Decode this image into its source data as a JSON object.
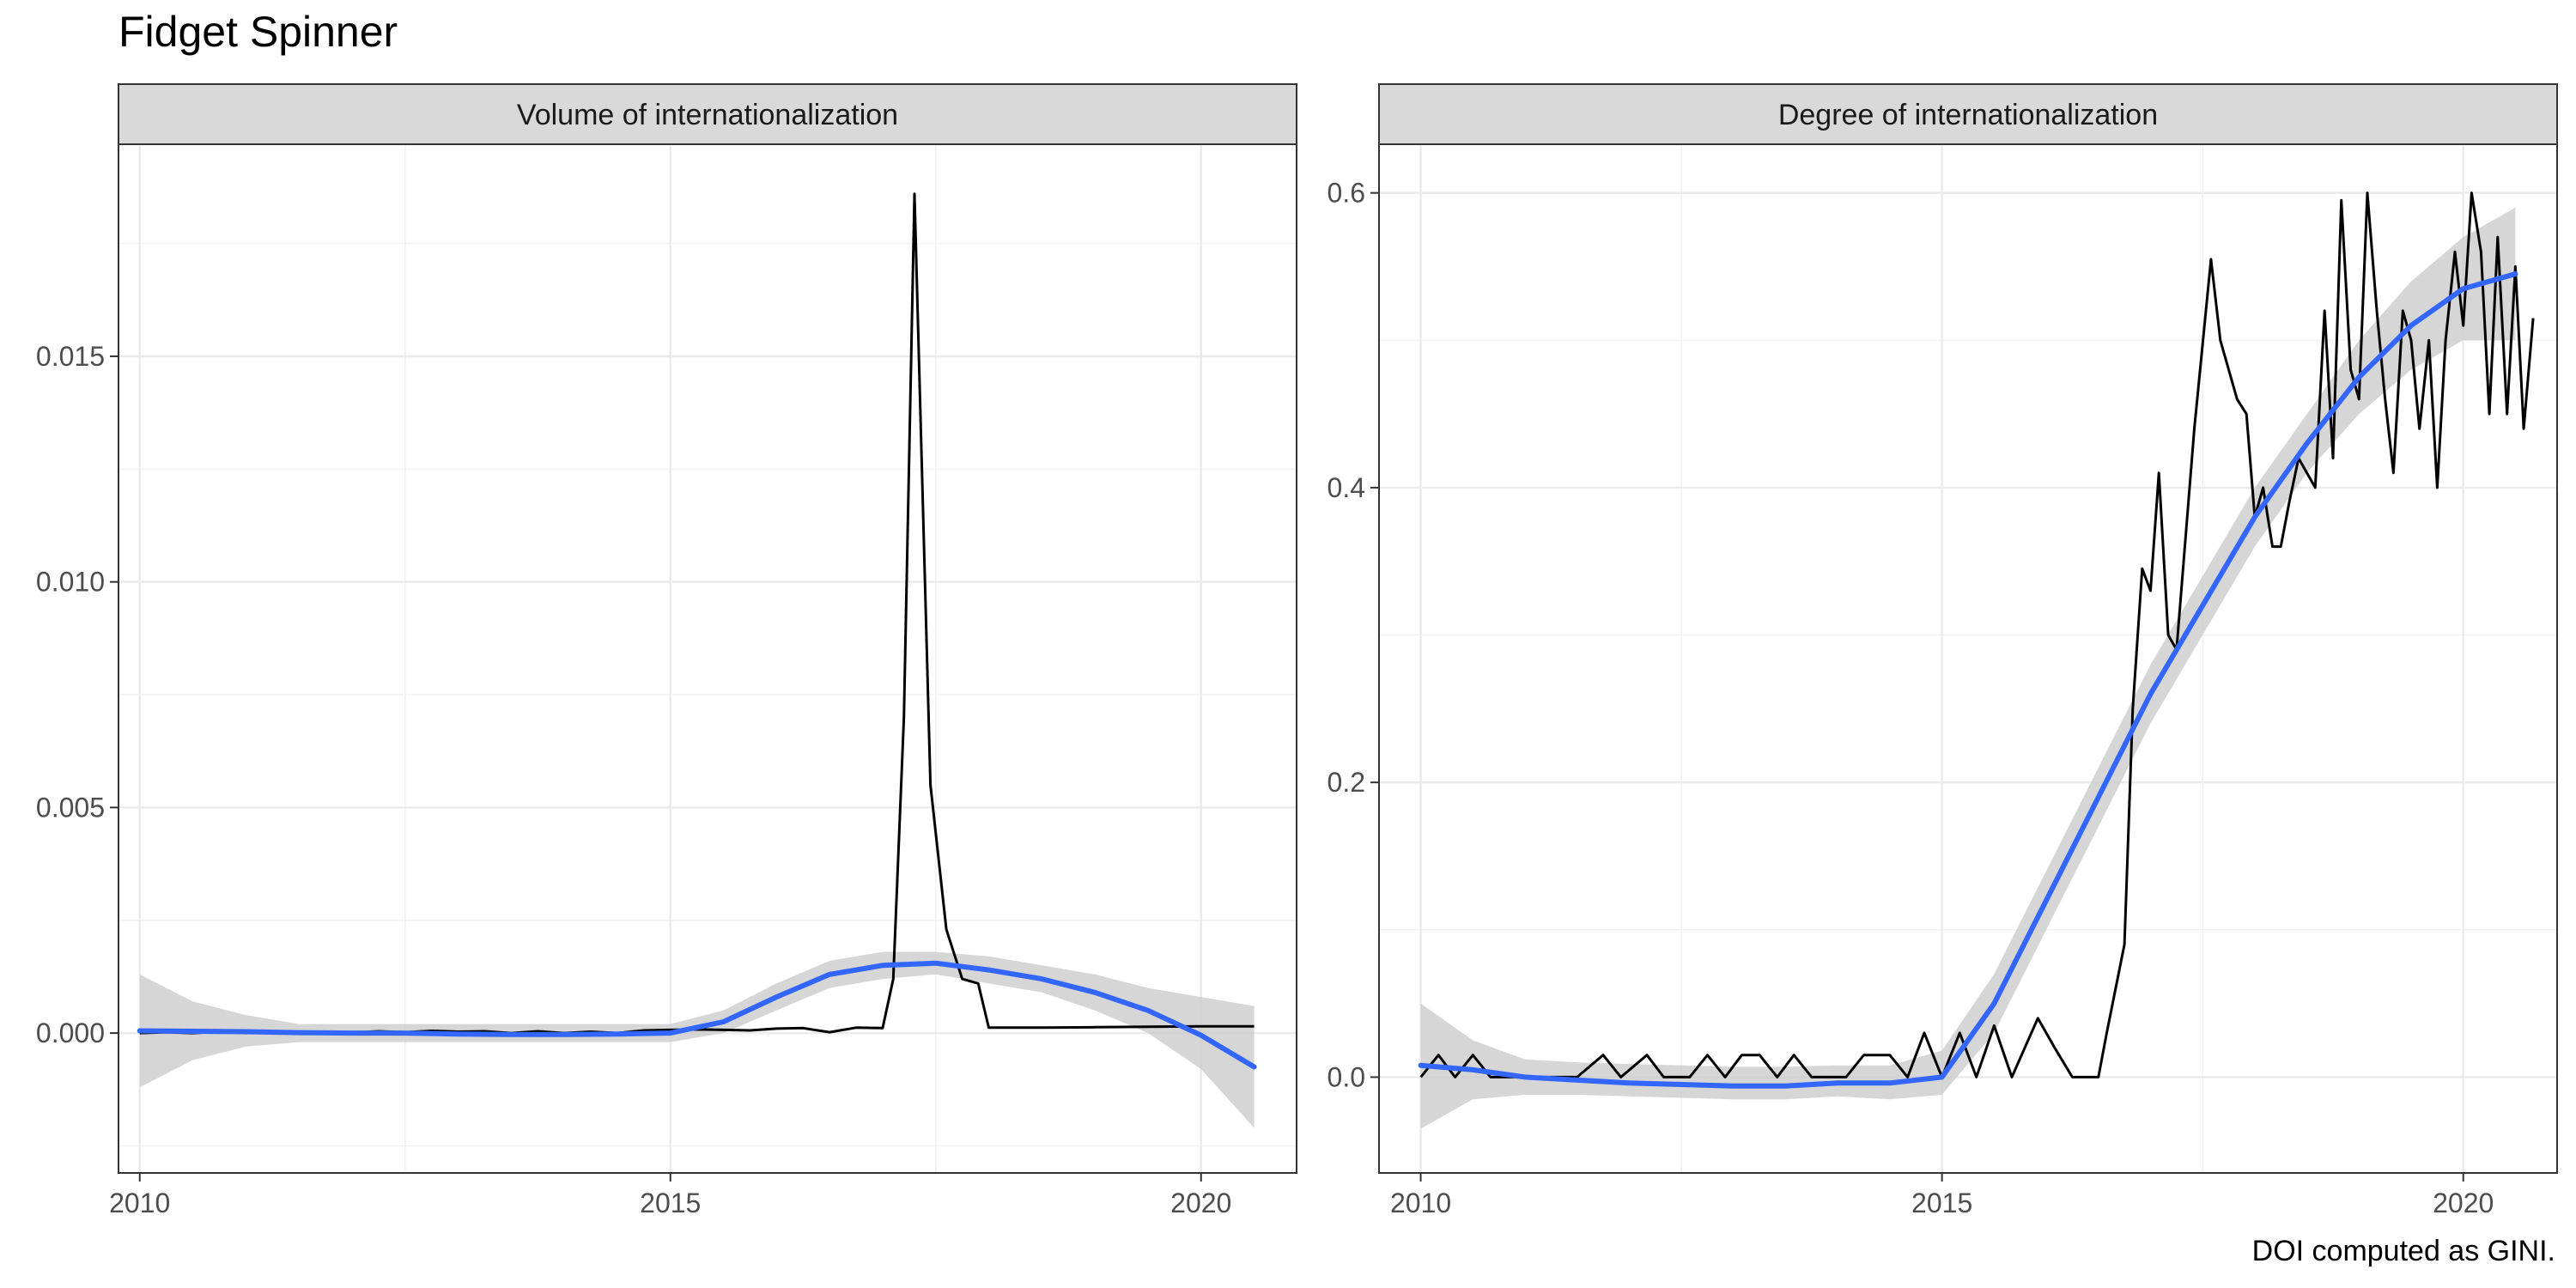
{
  "title": "Fidget Spinner",
  "caption": "DOI computed as GINI.",
  "chart_data": [
    {
      "type": "line",
      "title": "Volume of internationalization",
      "xlabel": "",
      "ylabel": "",
      "xlim": [
        2009.8,
        2020.9
      ],
      "ylim": [
        -0.0031,
        0.0197
      ],
      "x_ticks": [
        2010,
        2015,
        2020
      ],
      "x_tick_labels": [
        "2010",
        "2015",
        "2020"
      ],
      "y_ticks": [
        0.0,
        0.005,
        0.01,
        0.015
      ],
      "y_tick_labels": [
        "0.000",
        "0.005",
        "0.010",
        "0.015"
      ],
      "grid": true,
      "series": [
        {
          "role": "observed",
          "color": "#000000",
          "points": [
            [
              2010.0,
              0.0
            ],
            [
              2010.25,
              2e-05
            ],
            [
              2010.5,
              0.0
            ],
            [
              2010.75,
              3e-05
            ],
            [
              2011.0,
              0.0
            ],
            [
              2011.25,
              4e-05
            ],
            [
              2011.5,
              0.0
            ],
            [
              2011.75,
              3e-05
            ],
            [
              2012.0,
              1e-05
            ],
            [
              2012.25,
              4e-05
            ],
            [
              2012.5,
              2e-05
            ],
            [
              2012.75,
              5e-05
            ],
            [
              2013.0,
              3e-05
            ],
            [
              2013.25,
              4e-05
            ],
            [
              2013.5,
              0.0
            ],
            [
              2013.75,
              4e-05
            ],
            [
              2014.0,
              0.0
            ],
            [
              2014.25,
              3e-05
            ],
            [
              2014.5,
              0.0
            ],
            [
              2014.75,
              6e-05
            ],
            [
              2015.0,
              7e-05
            ],
            [
              2015.25,
              8e-05
            ],
            [
              2015.5,
              7e-05
            ],
            [
              2015.75,
              6e-05
            ],
            [
              2016.0,
              0.0001
            ],
            [
              2016.25,
              0.00011
            ],
            [
              2016.5,
              2e-05
            ],
            [
              2016.75,
              0.00012
            ],
            [
              2017.0,
              0.00011
            ],
            [
              2017.1,
              0.0012
            ],
            [
              2017.2,
              0.007
            ],
            [
              2017.3,
              0.0186
            ],
            [
              2017.45,
              0.0055
            ],
            [
              2017.6,
              0.0023
            ],
            [
              2017.75,
              0.0012
            ],
            [
              2017.9,
              0.0011
            ],
            [
              2018.0,
              0.00012
            ],
            [
              2018.5,
              0.00012
            ],
            [
              2019.0,
              0.00013
            ],
            [
              2019.5,
              0.00014
            ],
            [
              2020.0,
              0.00015
            ],
            [
              2020.5,
              0.00015
            ]
          ]
        },
        {
          "role": "smooth",
          "color": "#3366FF",
          "points": [
            [
              2010.0,
              5e-05
            ],
            [
              2010.5,
              4e-05
            ],
            [
              2011.0,
              3e-05
            ],
            [
              2011.5,
              1e-05
            ],
            [
              2012.0,
              0.0
            ],
            [
              2012.5,
              0.0
            ],
            [
              2013.0,
              -2e-05
            ],
            [
              2013.5,
              -3e-05
            ],
            [
              2014.0,
              -3e-05
            ],
            [
              2014.5,
              -2e-05
            ],
            [
              2015.0,
              0.0
            ],
            [
              2015.5,
              0.00025
            ],
            [
              2016.0,
              0.0008
            ],
            [
              2016.5,
              0.0013
            ],
            [
              2017.0,
              0.0015
            ],
            [
              2017.5,
              0.00155
            ],
            [
              2018.0,
              0.0014
            ],
            [
              2018.5,
              0.0012
            ],
            [
              2019.0,
              0.0009
            ],
            [
              2019.5,
              0.0005
            ],
            [
              2020.0,
              -5e-05
            ],
            [
              2020.5,
              -0.00075
            ]
          ]
        }
      ],
      "ribbon": [
        [
          2010.0,
          -0.0012,
          0.0013
        ],
        [
          2010.5,
          -0.0006,
          0.0007
        ],
        [
          2011.0,
          -0.0003,
          0.0004
        ],
        [
          2011.5,
          -0.0002,
          0.0002
        ],
        [
          2012.0,
          -0.0002,
          0.0002
        ],
        [
          2012.5,
          -0.0002,
          0.0002
        ],
        [
          2013.0,
          -0.0002,
          0.0002
        ],
        [
          2013.5,
          -0.0002,
          0.0002
        ],
        [
          2014.0,
          -0.0002,
          0.0002
        ],
        [
          2014.5,
          -0.0002,
          0.0002
        ],
        [
          2015.0,
          -0.0002,
          0.0002
        ],
        [
          2015.5,
          0.0,
          0.0005
        ],
        [
          2016.0,
          0.0005,
          0.0011
        ],
        [
          2016.5,
          0.001,
          0.0016
        ],
        [
          2017.0,
          0.0012,
          0.0018
        ],
        [
          2017.5,
          0.0013,
          0.0018
        ],
        [
          2018.0,
          0.0011,
          0.0017
        ],
        [
          2018.5,
          0.0009,
          0.0015
        ],
        [
          2019.0,
          0.0005,
          0.0013
        ],
        [
          2019.5,
          0.0,
          0.001
        ],
        [
          2020.0,
          -0.0008,
          0.0008
        ],
        [
          2020.5,
          -0.0021,
          0.0006
        ]
      ]
    },
    {
      "type": "line",
      "title": "Degree of internationalization",
      "xlabel": "",
      "ylabel": "",
      "xlim": [
        2009.6,
        2020.9
      ],
      "ylim": [
        -0.065,
        0.633
      ],
      "x_ticks": [
        2010,
        2015,
        2020
      ],
      "x_tick_labels": [
        "2010",
        "2015",
        "2020"
      ],
      "y_ticks": [
        0.0,
        0.2,
        0.4,
        0.6
      ],
      "y_tick_labels": [
        "0.0",
        "0.2",
        "0.4",
        "0.6"
      ],
      "grid": true,
      "series": [
        {
          "role": "observed",
          "color": "#000000",
          "points": [
            [
              2010.0,
              0.0
            ],
            [
              2010.17,
              0.015
            ],
            [
              2010.33,
              0.0
            ],
            [
              2010.5,
              0.015
            ],
            [
              2010.67,
              0.0
            ],
            [
              2011.0,
              0.0
            ],
            [
              2011.5,
              0.0
            ],
            [
              2011.75,
              0.015
            ],
            [
              2011.92,
              0.0
            ],
            [
              2012.17,
              0.015
            ],
            [
              2012.33,
              0.0
            ],
            [
              2012.58,
              0.0
            ],
            [
              2012.75,
              0.015
            ],
            [
              2012.92,
              0.0
            ],
            [
              2013.08,
              0.015
            ],
            [
              2013.25,
              0.015
            ],
            [
              2013.42,
              0.0
            ],
            [
              2013.58,
              0.015
            ],
            [
              2013.75,
              0.0
            ],
            [
              2013.92,
              0.0
            ],
            [
              2014.08,
              0.0
            ],
            [
              2014.25,
              0.015
            ],
            [
              2014.5,
              0.015
            ],
            [
              2014.67,
              0.0
            ],
            [
              2014.83,
              0.03
            ],
            [
              2015.0,
              0.0
            ],
            [
              2015.17,
              0.03
            ],
            [
              2015.33,
              0.0
            ],
            [
              2015.5,
              0.035
            ],
            [
              2015.67,
              0.0
            ],
            [
              2015.92,
              0.04
            ],
            [
              2016.08,
              0.02
            ],
            [
              2016.25,
              0.0
            ],
            [
              2016.5,
              0.0
            ],
            [
              2016.58,
              0.03
            ],
            [
              2016.75,
              0.09
            ],
            [
              2016.83,
              0.25
            ],
            [
              2016.92,
              0.345
            ],
            [
              2017.0,
              0.33
            ],
            [
              2017.08,
              0.41
            ],
            [
              2017.17,
              0.3
            ],
            [
              2017.25,
              0.29
            ],
            [
              2017.42,
              0.44
            ],
            [
              2017.58,
              0.555
            ],
            [
              2017.67,
              0.5
            ],
            [
              2017.83,
              0.46
            ],
            [
              2017.92,
              0.45
            ],
            [
              2018.0,
              0.38
            ],
            [
              2018.08,
              0.4
            ],
            [
              2018.17,
              0.36
            ],
            [
              2018.25,
              0.36
            ],
            [
              2018.33,
              0.39
            ],
            [
              2018.42,
              0.42
            ],
            [
              2018.58,
              0.4
            ],
            [
              2018.67,
              0.52
            ],
            [
              2018.75,
              0.42
            ],
            [
              2018.83,
              0.595
            ],
            [
              2018.92,
              0.48
            ],
            [
              2019.0,
              0.46
            ],
            [
              2019.08,
              0.6
            ],
            [
              2019.17,
              0.52
            ],
            [
              2019.25,
              0.46
            ],
            [
              2019.33,
              0.41
            ],
            [
              2019.42,
              0.52
            ],
            [
              2019.5,
              0.5
            ],
            [
              2019.58,
              0.44
            ],
            [
              2019.67,
              0.5
            ],
            [
              2019.75,
              0.4
            ],
            [
              2019.83,
              0.5
            ],
            [
              2019.92,
              0.56
            ],
            [
              2020.0,
              0.51
            ],
            [
              2020.08,
              0.6
            ],
            [
              2020.17,
              0.56
            ],
            [
              2020.25,
              0.45
            ],
            [
              2020.33,
              0.57
            ],
            [
              2020.42,
              0.45
            ],
            [
              2020.5,
              0.55
            ],
            [
              2020.58,
              0.44
            ],
            [
              2020.67,
              0.515
            ]
          ]
        },
        {
          "role": "smooth",
          "color": "#3366FF",
          "points": [
            [
              2010.0,
              0.008
            ],
            [
              2010.5,
              0.005
            ],
            [
              2011.0,
              0.0
            ],
            [
              2011.5,
              -0.002
            ],
            [
              2012.0,
              -0.004
            ],
            [
              2012.5,
              -0.005
            ],
            [
              2013.0,
              -0.006
            ],
            [
              2013.5,
              -0.006
            ],
            [
              2014.0,
              -0.004
            ],
            [
              2014.5,
              -0.004
            ],
            [
              2015.0,
              0.0
            ],
            [
              2015.5,
              0.05
            ],
            [
              2016.0,
              0.12
            ],
            [
              2016.5,
              0.19
            ],
            [
              2017.0,
              0.26
            ],
            [
              2017.5,
              0.32
            ],
            [
              2018.0,
              0.38
            ],
            [
              2018.5,
              0.43
            ],
            [
              2019.0,
              0.475
            ],
            [
              2019.5,
              0.51
            ],
            [
              2020.0,
              0.535
            ],
            [
              2020.5,
              0.545
            ]
          ]
        }
      ],
      "ribbon": [
        [
          2010.0,
          -0.035,
          0.05
        ],
        [
          2010.5,
          -0.015,
          0.025
        ],
        [
          2011.0,
          -0.012,
          0.012
        ],
        [
          2011.5,
          -0.012,
          0.01
        ],
        [
          2012.0,
          -0.013,
          0.009
        ],
        [
          2012.5,
          -0.014,
          0.008
        ],
        [
          2013.0,
          -0.015,
          0.007
        ],
        [
          2013.5,
          -0.015,
          0.007
        ],
        [
          2014.0,
          -0.013,
          0.008
        ],
        [
          2014.5,
          -0.015,
          0.008
        ],
        [
          2015.0,
          -0.012,
          0.018
        ],
        [
          2015.5,
          0.03,
          0.07
        ],
        [
          2016.0,
          0.1,
          0.14
        ],
        [
          2016.5,
          0.17,
          0.21
        ],
        [
          2017.0,
          0.24,
          0.28
        ],
        [
          2017.5,
          0.3,
          0.34
        ],
        [
          2018.0,
          0.36,
          0.4
        ],
        [
          2018.5,
          0.41,
          0.45
        ],
        [
          2019.0,
          0.45,
          0.5
        ],
        [
          2019.5,
          0.48,
          0.54
        ],
        [
          2020.0,
          0.5,
          0.57
        ],
        [
          2020.5,
          0.5,
          0.59
        ]
      ]
    }
  ]
}
